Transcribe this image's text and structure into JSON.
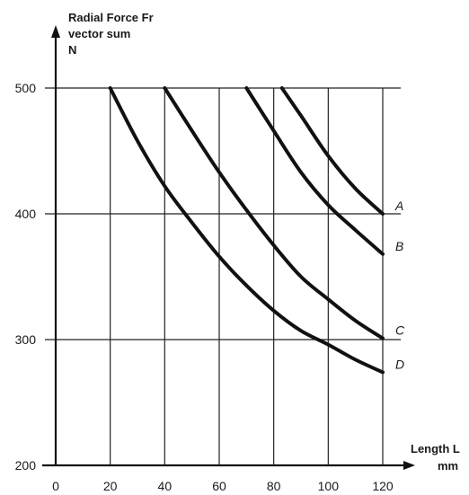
{
  "chart_data": {
    "type": "line",
    "ylabel_lines": [
      "Radial Force Fr",
      "vector sum",
      "N"
    ],
    "xlabel_lines": [
      "Length L",
      "mm"
    ],
    "xlim": [
      0,
      120
    ],
    "ylim": [
      200,
      500
    ],
    "x_ticks": [
      0,
      20,
      40,
      60,
      80,
      100,
      120
    ],
    "y_ticks": [
      200,
      300,
      400,
      500
    ],
    "grid": true,
    "legend": "none (series labelled at right end of curves)",
    "series": [
      {
        "name": "A",
        "x": [
          83,
          90,
          100,
          110,
          120
        ],
        "y": [
          500,
          478,
          446,
          420,
          400
        ]
      },
      {
        "name": "B",
        "x": [
          70,
          80,
          90,
          100,
          110,
          120
        ],
        "y": [
          500,
          466,
          433,
          407,
          387,
          368
        ]
      },
      {
        "name": "C",
        "x": [
          40,
          50,
          60,
          70,
          80,
          90,
          100,
          110,
          120
        ],
        "y": [
          500,
          466,
          433,
          403,
          375,
          350,
          332,
          315,
          301
        ]
      },
      {
        "name": "D",
        "x": [
          20,
          30,
          40,
          50,
          60,
          70,
          80,
          90,
          100,
          110,
          120
        ],
        "y": [
          500,
          458,
          422,
          393,
          366,
          343,
          323,
          307,
          296,
          284,
          274
        ]
      }
    ]
  }
}
